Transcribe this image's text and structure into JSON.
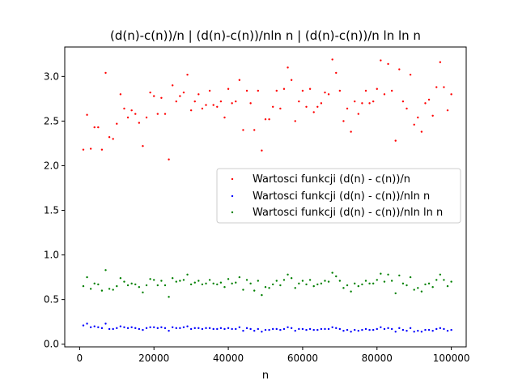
{
  "chart_data": {
    "type": "scatter",
    "title": "(d(n)-c(n))/n | (d(n)-c(n))/nln n | (d(n)-c(n))/n ln ln n",
    "xlabel": "n",
    "ylabel": "",
    "xlim": [
      -4000,
      104000
    ],
    "ylim": [
      -0.03,
      3.33
    ],
    "xticks": [
      0,
      20000,
      40000,
      60000,
      80000,
      100000
    ],
    "xtick_labels": [
      "0",
      "20000",
      "40000",
      "60000",
      "80000",
      "100000"
    ],
    "yticks": [
      0.0,
      0.5,
      1.0,
      1.5,
      2.0,
      2.5,
      3.0
    ],
    "ytick_labels": [
      "0.0",
      "0.5",
      "1.0",
      "1.5",
      "2.0",
      "2.5",
      "3.0"
    ],
    "grid": false,
    "legend_position": "center-right",
    "x": [
      1000,
      2000,
      3000,
      4000,
      5000,
      6000,
      7000,
      8000,
      9000,
      10000,
      11000,
      12000,
      13000,
      14000,
      15000,
      16000,
      17000,
      18000,
      19000,
      20000,
      21000,
      22000,
      23000,
      24000,
      25000,
      26000,
      27000,
      28000,
      29000,
      30000,
      31000,
      32000,
      33000,
      34000,
      35000,
      36000,
      37000,
      38000,
      39000,
      40000,
      41000,
      42000,
      43000,
      44000,
      45000,
      46000,
      47000,
      48000,
      49000,
      50000,
      51000,
      52000,
      53000,
      54000,
      55000,
      56000,
      57000,
      58000,
      59000,
      60000,
      61000,
      62000,
      63000,
      64000,
      65000,
      66000,
      67000,
      68000,
      69000,
      70000,
      71000,
      72000,
      73000,
      74000,
      75000,
      76000,
      77000,
      78000,
      79000,
      80000,
      81000,
      82000,
      83000,
      84000,
      85000,
      86000,
      87000,
      88000,
      89000,
      90000,
      91000,
      92000,
      93000,
      94000,
      95000,
      96000,
      97000,
      98000,
      99000,
      100000
    ],
    "series": [
      {
        "name": "Wartosci funkcji (d(n) - c(n))/n",
        "color": "#ff0000",
        "values": [
          2.18,
          2.57,
          2.19,
          2.43,
          2.43,
          2.18,
          3.04,
          2.32,
          2.3,
          2.47,
          2.8,
          2.64,
          2.54,
          2.62,
          2.58,
          2.48,
          2.22,
          2.54,
          2.82,
          2.78,
          2.58,
          2.76,
          2.58,
          2.07,
          2.9,
          2.72,
          2.78,
          2.82,
          3.02,
          2.62,
          2.72,
          2.8,
          2.64,
          2.68,
          2.84,
          2.68,
          2.66,
          2.72,
          2.54,
          2.86,
          2.7,
          2.72,
          2.96,
          2.4,
          2.84,
          2.7,
          2.4,
          2.84,
          2.17,
          2.52,
          2.52,
          2.66,
          2.84,
          2.64,
          2.86,
          3.1,
          2.96,
          2.5,
          2.72,
          2.84,
          2.66,
          2.86,
          2.6,
          2.66,
          2.7,
          2.82,
          2.8,
          3.19,
          3.04,
          2.84,
          2.5,
          2.64,
          2.38,
          2.72,
          2.58,
          2.7,
          2.84,
          2.7,
          2.72,
          2.86,
          3.18,
          2.8,
          3.14,
          2.84,
          2.28,
          3.08,
          2.72,
          2.64,
          3.02,
          2.46,
          2.54,
          2.38,
          2.7,
          2.74,
          2.56,
          2.88,
          3.16,
          2.88,
          2.62,
          2.8
        ]
      },
      {
        "name": "Wartosci funkcji (d(n) - c(n))/nln n",
        "color": "#0000ff",
        "values": [
          0.21,
          0.23,
          0.19,
          0.2,
          0.19,
          0.18,
          0.23,
          0.17,
          0.17,
          0.18,
          0.2,
          0.19,
          0.18,
          0.19,
          0.18,
          0.17,
          0.16,
          0.18,
          0.19,
          0.19,
          0.18,
          0.19,
          0.18,
          0.15,
          0.19,
          0.18,
          0.18,
          0.19,
          0.2,
          0.17,
          0.18,
          0.18,
          0.17,
          0.18,
          0.18,
          0.17,
          0.17,
          0.18,
          0.17,
          0.18,
          0.17,
          0.17,
          0.19,
          0.15,
          0.18,
          0.17,
          0.15,
          0.17,
          0.14,
          0.16,
          0.16,
          0.17,
          0.17,
          0.16,
          0.17,
          0.19,
          0.18,
          0.15,
          0.17,
          0.17,
          0.16,
          0.17,
          0.16,
          0.16,
          0.17,
          0.17,
          0.17,
          0.19,
          0.18,
          0.17,
          0.15,
          0.16,
          0.14,
          0.16,
          0.15,
          0.16,
          0.17,
          0.16,
          0.16,
          0.17,
          0.19,
          0.17,
          0.18,
          0.17,
          0.14,
          0.18,
          0.16,
          0.15,
          0.18,
          0.14,
          0.15,
          0.14,
          0.16,
          0.16,
          0.15,
          0.17,
          0.18,
          0.17,
          0.15,
          0.16
        ]
      },
      {
        "name": "Wartosci funkcji (d(n) - c(n))/nln ln n",
        "color": "#008000",
        "values": [
          0.65,
          0.75,
          0.62,
          0.68,
          0.67,
          0.6,
          0.83,
          0.62,
          0.61,
          0.65,
          0.74,
          0.7,
          0.66,
          0.68,
          0.67,
          0.64,
          0.58,
          0.66,
          0.73,
          0.72,
          0.66,
          0.71,
          0.66,
          0.53,
          0.74,
          0.7,
          0.71,
          0.72,
          0.78,
          0.67,
          0.69,
          0.71,
          0.67,
          0.68,
          0.72,
          0.68,
          0.67,
          0.69,
          0.64,
          0.73,
          0.68,
          0.69,
          0.75,
          0.61,
          0.72,
          0.68,
          0.6,
          0.71,
          0.55,
          0.64,
          0.63,
          0.67,
          0.71,
          0.66,
          0.72,
          0.78,
          0.74,
          0.63,
          0.68,
          0.71,
          0.67,
          0.72,
          0.65,
          0.67,
          0.68,
          0.71,
          0.7,
          0.8,
          0.76,
          0.71,
          0.63,
          0.66,
          0.59,
          0.68,
          0.65,
          0.67,
          0.71,
          0.68,
          0.68,
          0.72,
          0.79,
          0.7,
          0.78,
          0.71,
          0.57,
          0.77,
          0.68,
          0.66,
          0.75,
          0.61,
          0.63,
          0.59,
          0.67,
          0.68,
          0.64,
          0.72,
          0.78,
          0.72,
          0.65,
          0.7
        ]
      }
    ]
  }
}
